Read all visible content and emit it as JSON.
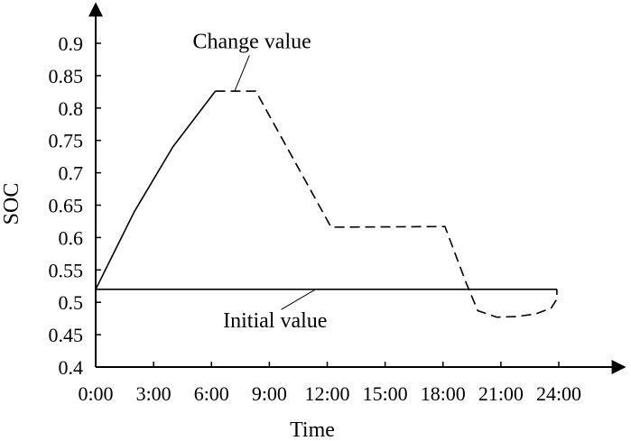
{
  "chart_data": {
    "type": "line",
    "title": "",
    "xlabel": "Time",
    "ylabel": "SOC",
    "xlim": [
      0,
      24
    ],
    "ylim": [
      0.4,
      0.9
    ],
    "x_ticks": [
      {
        "value": 0,
        "label": "0:00"
      },
      {
        "value": 3,
        "label": "3:00"
      },
      {
        "value": 6,
        "label": "6:00"
      },
      {
        "value": 9,
        "label": "9:00"
      },
      {
        "value": 12,
        "label": "12:00"
      },
      {
        "value": 15,
        "label": "15:00"
      },
      {
        "value": 18,
        "label": "18:00"
      },
      {
        "value": 21,
        "label": "21:00"
      },
      {
        "value": 24,
        "label": "24:00"
      }
    ],
    "y_ticks": [
      {
        "value": 0.4,
        "label": "0.4"
      },
      {
        "value": 0.45,
        "label": "0.45"
      },
      {
        "value": 0.5,
        "label": "0.5"
      },
      {
        "value": 0.55,
        "label": "0.55"
      },
      {
        "value": 0.6,
        "label": "0.6"
      },
      {
        "value": 0.65,
        "label": "0.65"
      },
      {
        "value": 0.7,
        "label": "0.7"
      },
      {
        "value": 0.75,
        "label": "0.75"
      },
      {
        "value": 0.8,
        "label": "0.8"
      },
      {
        "value": 0.85,
        "label": "0.85"
      },
      {
        "value": 0.9,
        "label": "0.9"
      }
    ],
    "grid": false,
    "series": [
      {
        "style": "solid",
        "color": "#000000",
        "points": [
          [
            0,
            0.52
          ],
          [
            2,
            0.64
          ],
          [
            4,
            0.74
          ],
          [
            6.2,
            0.826
          ]
        ]
      },
      {
        "style": "dashed",
        "color": "#000000",
        "points": [
          [
            6.2,
            0.826
          ],
          [
            8.3,
            0.826
          ],
          [
            12.2,
            0.616
          ],
          [
            18.1,
            0.617
          ],
          [
            19.2,
            0.53
          ],
          [
            19.8,
            0.487
          ],
          [
            20.8,
            0.477
          ],
          [
            21.8,
            0.478
          ],
          [
            22.8,
            0.482
          ],
          [
            23.6,
            0.491
          ],
          [
            23.9,
            0.505
          ],
          [
            23.9,
            0.52
          ]
        ]
      },
      {
        "style": "solid",
        "color": "#000000",
        "points": [
          [
            0,
            0.52
          ],
          [
            23.9,
            0.52
          ]
        ]
      }
    ],
    "annotations": [
      {
        "text": "Change value",
        "x": 8.1,
        "y": 0.8925,
        "anchor_x": 7.2,
        "anchor_y": 0.826
      },
      {
        "text": "Initial value",
        "x": 9.3,
        "y": 0.461,
        "anchor_x": 11.4,
        "anchor_y": 0.52
      }
    ]
  }
}
